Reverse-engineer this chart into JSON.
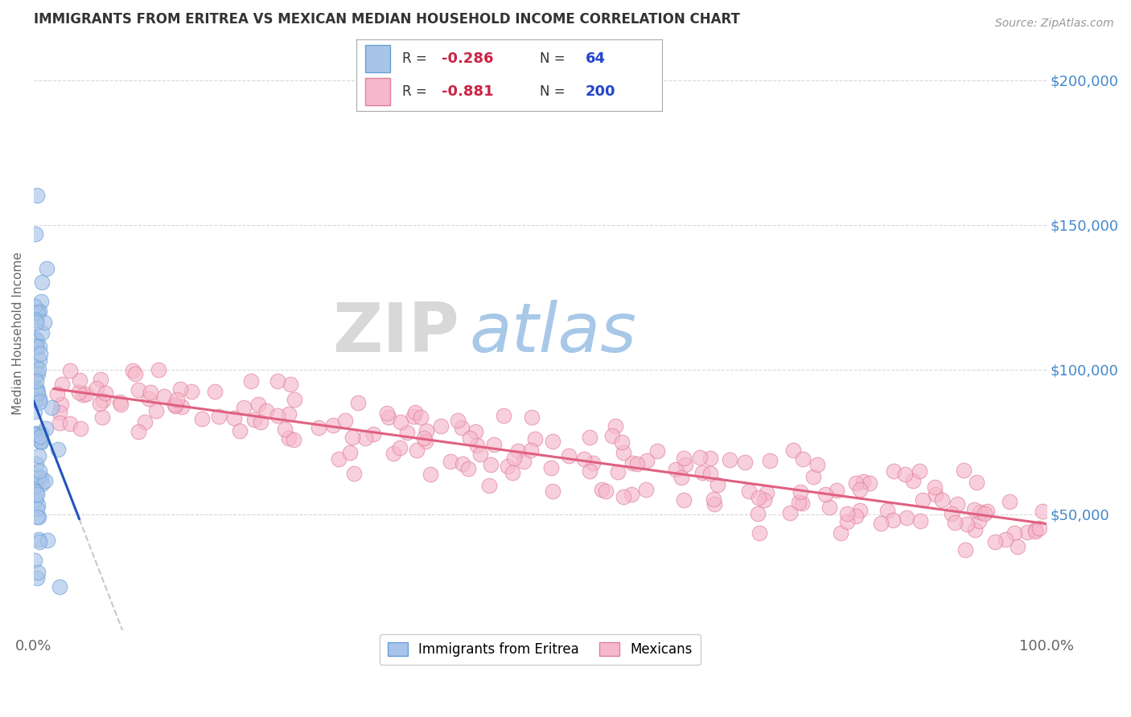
{
  "title": "IMMIGRANTS FROM ERITREA VS MEXICAN MEDIAN HOUSEHOLD INCOME CORRELATION CHART",
  "source_text": "Source: ZipAtlas.com",
  "ylabel": "Median Household Income",
  "xlim": [
    0.0,
    100.0
  ],
  "ylim": [
    10000,
    215000
  ],
  "yticks": [
    50000,
    100000,
    150000,
    200000
  ],
  "ytick_labels": [
    "$50,000",
    "$100,000",
    "$150,000",
    "$200,000"
  ],
  "xtick_labels": [
    "0.0%",
    "100.0%"
  ],
  "eritrea_color": "#a8c4e8",
  "eritrea_edge": "#6a9fd8",
  "mexican_color": "#f5b8cc",
  "mexican_edge": "#e08098",
  "trend_eritrea_color": "#2255bb",
  "trend_mexican_color": "#e06080",
  "dashed_line_color": "#c8c8c8",
  "watermark_zip": "ZIP",
  "watermark_atlas": "atlas",
  "watermark_zip_color": "#d8d8d8",
  "watermark_atlas_color": "#a8c8e8",
  "background_color": "#ffffff",
  "grid_color": "#d8d8d8",
  "title_color": "#333333",
  "title_fontsize": 12,
  "axis_label_color": "#666666",
  "tick_color_right": "#4488cc",
  "legend_R_color": "#cc2244",
  "legend_N_color": "#2244cc",
  "legend_eritrea_R": "-0.286",
  "legend_eritrea_N": "64",
  "legend_mexican_R": "-0.881",
  "legend_mexican_N": "200"
}
